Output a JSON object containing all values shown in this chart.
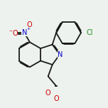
{
  "background_color": "#eef2ee",
  "bond_color": "#1a1a1a",
  "bond_width": 1.3,
  "atom_colors": {
    "N": "#0000cc",
    "O": "#cc0000",
    "Cl": "#228B22"
  },
  "font_size": 7.0,
  "figsize": [
    1.52,
    1.52
  ],
  "dpi": 100
}
